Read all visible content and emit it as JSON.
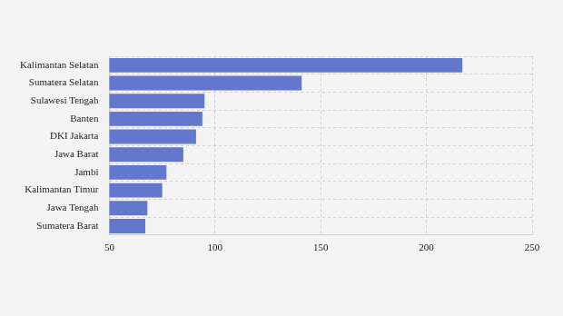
{
  "chart_data": {
    "type": "bar",
    "orientation": "horizontal",
    "categories": [
      "Kalimantan Selatan",
      "Sumatera Selatan",
      "Sulawesi Tengah",
      "Banten",
      "DKI Jakarta",
      "Jawa Barat",
      "Jambi",
      "Kalimantan Timur",
      "Jawa Tengah",
      "Sumatera Barat"
    ],
    "values": [
      217,
      141,
      95,
      94,
      91,
      85,
      77,
      75,
      68,
      67
    ],
    "color": "#6378cc",
    "xlim": [
      50,
      250
    ],
    "xticks": [
      50,
      100,
      150,
      200,
      250
    ],
    "grid": true
  }
}
